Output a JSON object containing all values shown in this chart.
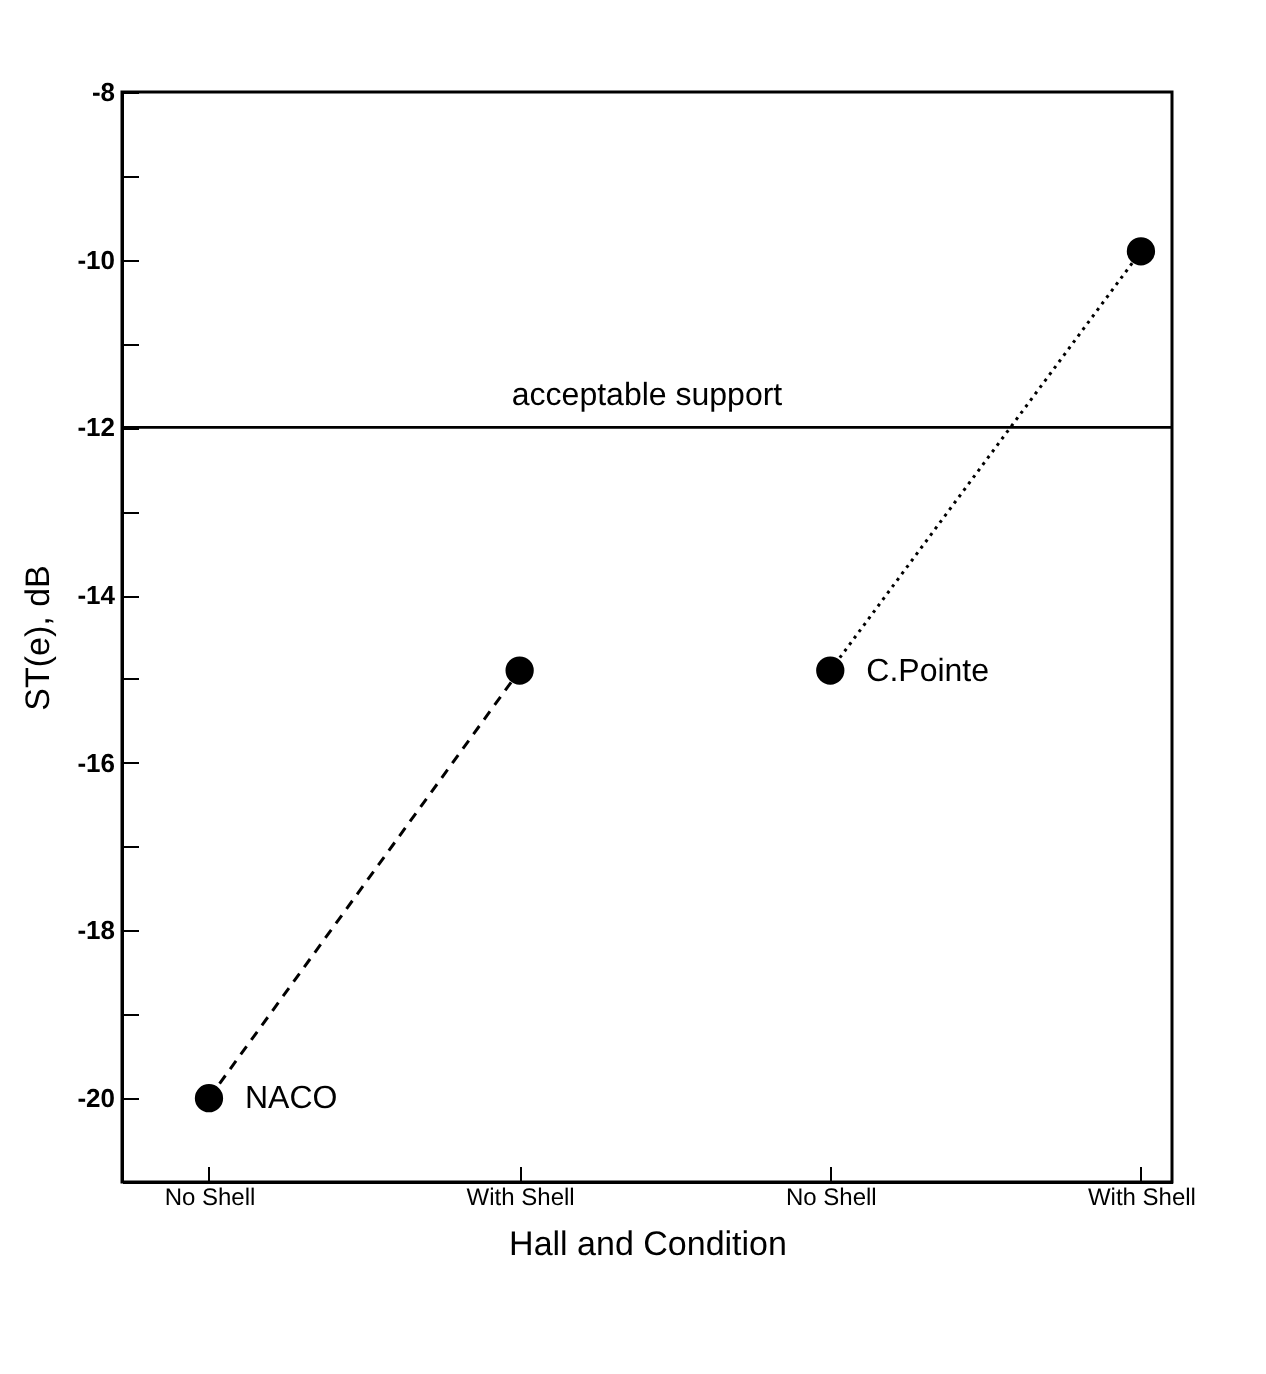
{
  "chart_data": {
    "type": "line",
    "xlabel": "Hall and Condition",
    "ylabel": "ST(e), dB",
    "categories": [
      "No Shell",
      "With Shell",
      "No Shell",
      "With Shell"
    ],
    "series": [
      {
        "name": "NACO",
        "color": "#000000",
        "values": [
          -20,
          -14.9,
          null,
          null
        ],
        "line_style": "dashed",
        "marker": "circle"
      },
      {
        "name": "C.Pointe",
        "color": "#000000",
        "values": [
          null,
          null,
          -14.9,
          -9.9
        ],
        "line_style": "dotted",
        "marker": "circle"
      }
    ],
    "ylim": [
      -21,
      -8
    ],
    "yticks": [
      -8,
      {
        "value": -9,
        "label": null
      },
      -10,
      {
        "value": -11,
        "label": null
      },
      -12,
      {
        "value": -13,
        "label": null
      },
      -14,
      {
        "value": -15,
        "label": null
      },
      -16,
      {
        "value": -17,
        "label": null
      },
      -18,
      {
        "value": -19,
        "label": null
      },
      -20,
      {
        "value": -21,
        "label": null
      }
    ],
    "ref_lines": [
      {
        "axis": "y",
        "value": -12,
        "label": "acceptable support"
      }
    ],
    "grid": false
  }
}
